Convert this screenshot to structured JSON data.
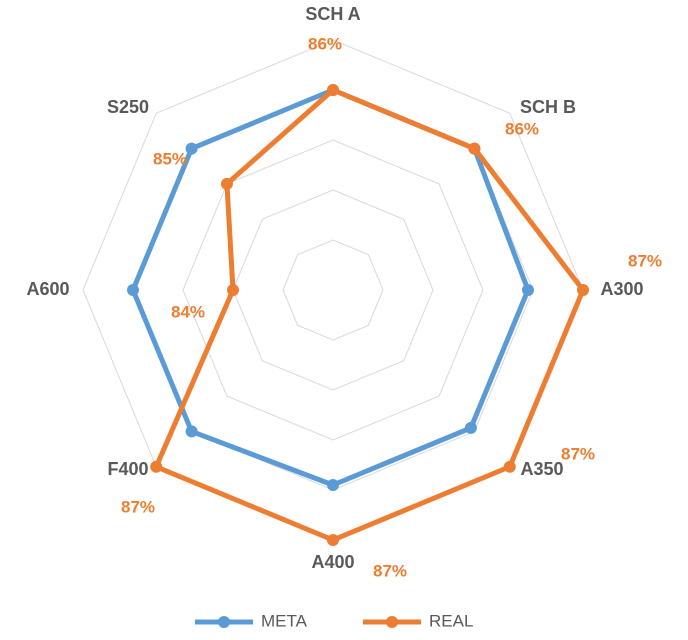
{
  "chart_data": {
    "type": "radar",
    "categories": [
      "SCH A",
      "SCH B",
      "A300",
      "A350",
      "A400",
      "F400",
      "A600",
      "S250"
    ],
    "series": [
      {
        "name": "META",
        "color": "#5b9bd5",
        "values": [
          86,
          86,
          85.9,
          85.9,
          85.9,
          86,
          86,
          86
        ]
      },
      {
        "name": "REAL",
        "color": "#ed7d31",
        "values": [
          86,
          86,
          87,
          87,
          87,
          87,
          84,
          85
        ],
        "value_labels": [
          "86%",
          "86%",
          "87%",
          "87%",
          "87%",
          "87%",
          "84%",
          "85%"
        ]
      }
    ],
    "rlim": [
      82,
      87
    ],
    "rticks": [
      83,
      84,
      85,
      86,
      87
    ],
    "grid": true,
    "legend": "bottom"
  }
}
